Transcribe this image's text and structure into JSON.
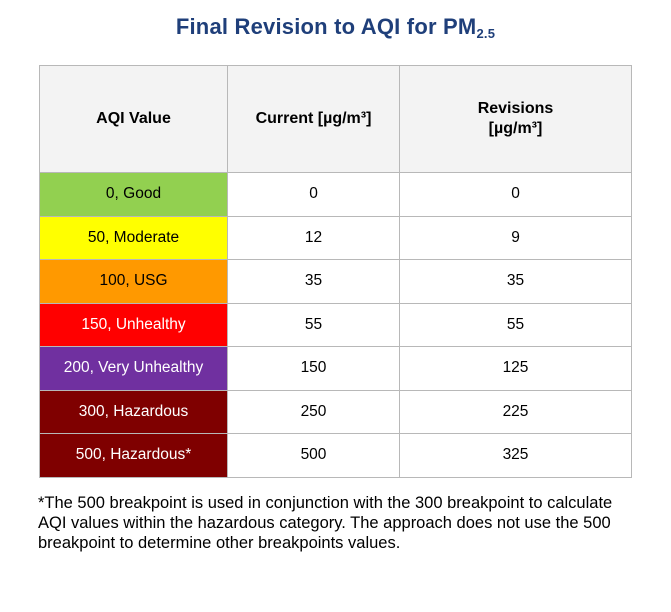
{
  "title": {
    "main": "Final Revision to AQI for PM",
    "subscript": "2.5"
  },
  "table": {
    "headers": {
      "aqi_value": "AQI Value",
      "current": "Current [µg/m³]",
      "revisions_line1": "Revisions",
      "revisions_line2": "[µg/m³]"
    },
    "rows": [
      {
        "category": "0, Good",
        "current": "0",
        "revision": "0",
        "color": "#92d050",
        "text_color": "#000000"
      },
      {
        "category": "50, Moderate",
        "current": "12",
        "revision": "9",
        "color": "#ffff00",
        "text_color": "#000000"
      },
      {
        "category": "100, USG",
        "current": "35",
        "revision": "35",
        "color": "#ff9900",
        "text_color": "#000000"
      },
      {
        "category": "150, Unhealthy",
        "current": "55",
        "revision": "55",
        "color": "#ff0000",
        "text_color": "#ffffff"
      },
      {
        "category": "200, Very Unhealthy",
        "current": "150",
        "revision": "125",
        "color": "#7030a0",
        "text_color": "#ffffff"
      },
      {
        "category": "300, Hazardous",
        "current": "250",
        "revision": "225",
        "color": "#7f0000",
        "text_color": "#ffffff"
      },
      {
        "category": "500, Hazardous*",
        "current": "500",
        "revision": "325",
        "color": "#7f0000",
        "text_color": "#ffffff"
      }
    ]
  },
  "footnote": "*The 500 breakpoint is used in conjunction with the 300 breakpoint to calculate AQI values within the hazardous category. The approach does not use the 500 breakpoint to determine other breakpoints values."
}
